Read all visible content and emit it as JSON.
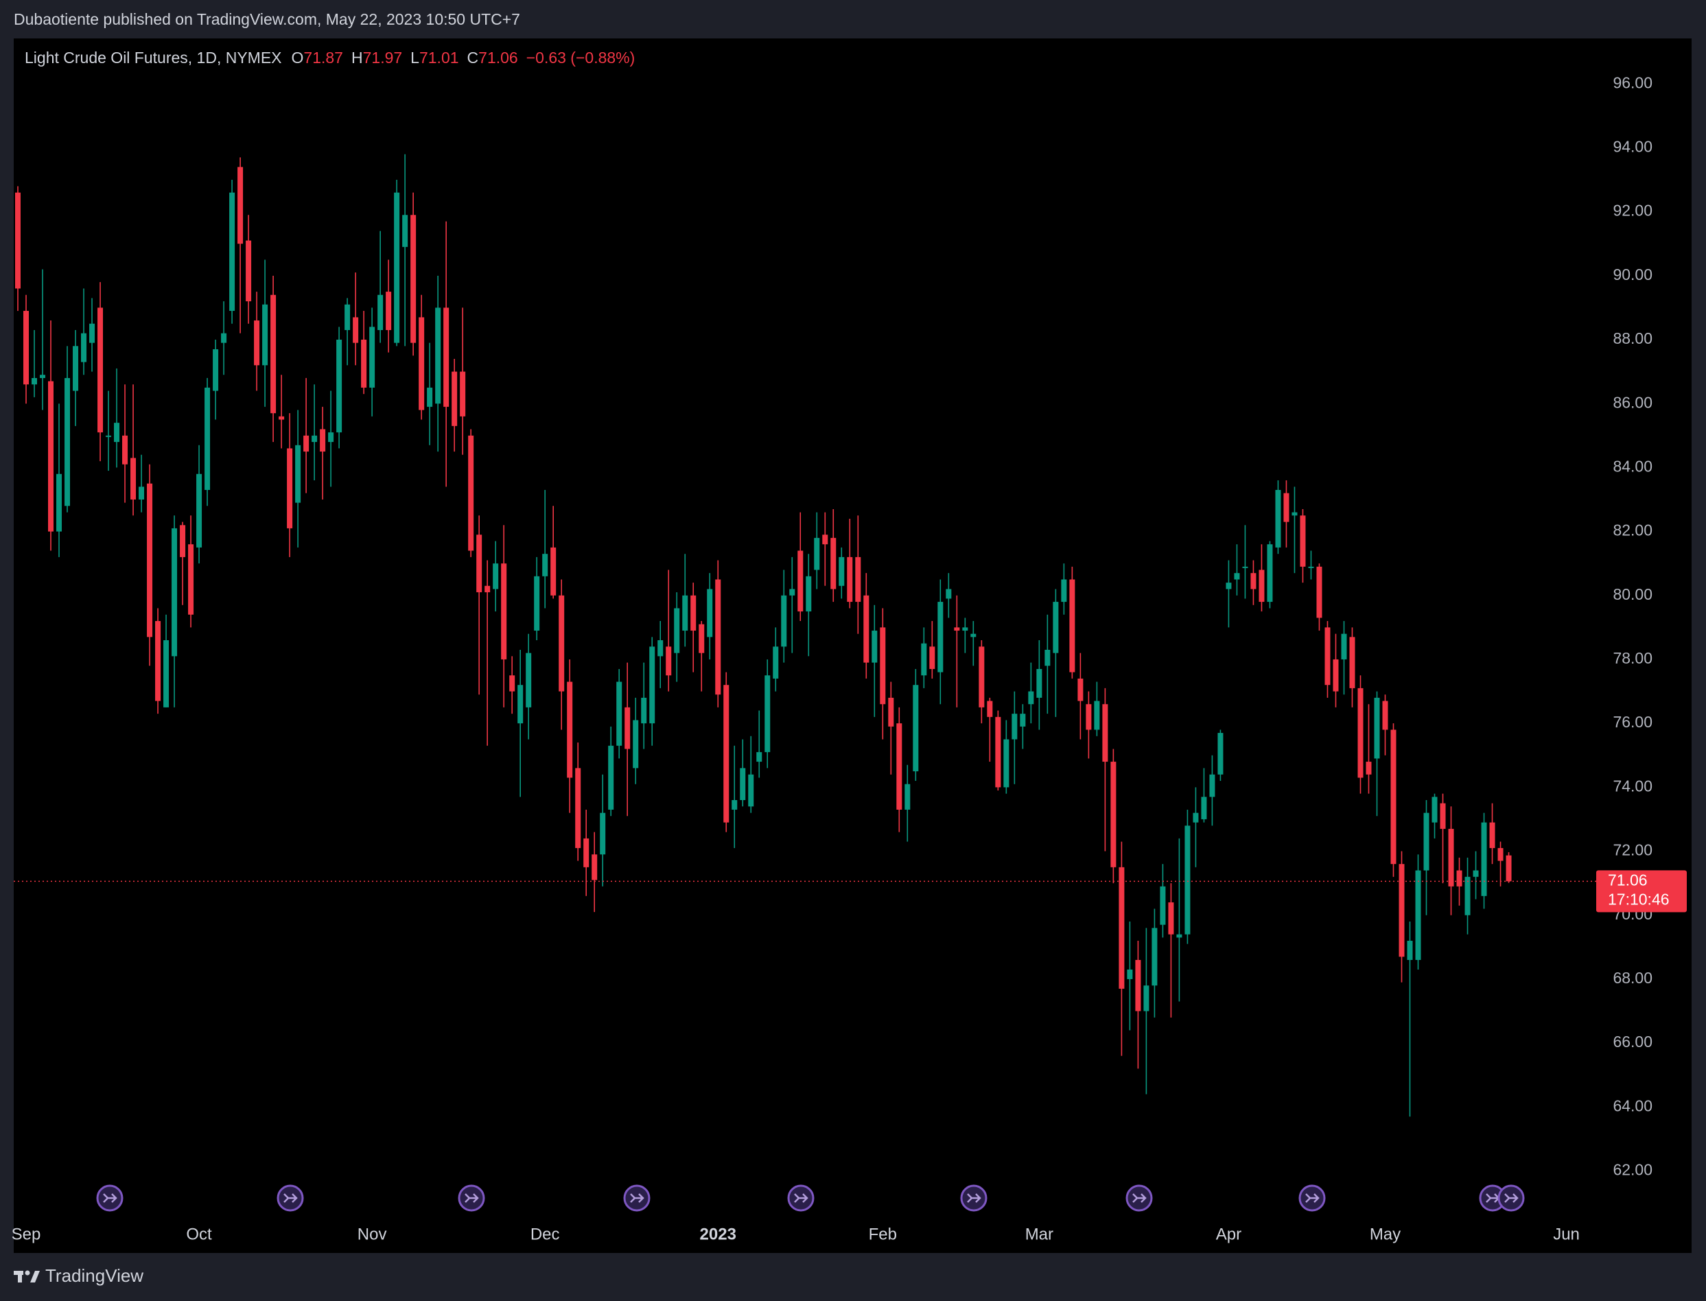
{
  "header": {
    "text": "Dubaotiente published on TradingView.com, May 22, 2023 10:50 UTC+7"
  },
  "chart_data": {
    "type": "candlestick",
    "title": "Light Crude Oil Futures, 1D, NYMEX",
    "ohlc_labels": [
      "O",
      "H",
      "L",
      "C"
    ],
    "change": "−0.63 (−0.88%)",
    "countdown": "17:10:46",
    "up_color": "#089981",
    "down_color": "#f23645",
    "last_price_line": true,
    "ohlc": [
      [
        92.6,
        92.8,
        88.9,
        89.6
      ],
      [
        88.9,
        89.4,
        86.0,
        86.6
      ],
      [
        86.6,
        88.3,
        86.2,
        86.8
      ],
      [
        86.8,
        90.2,
        85.8,
        86.9
      ],
      [
        86.7,
        88.6,
        81.4,
        82.0
      ],
      [
        82.0,
        86.0,
        81.2,
        83.8
      ],
      [
        82.8,
        87.8,
        82.6,
        86.8
      ],
      [
        86.4,
        88.3,
        85.3,
        87.8
      ],
      [
        87.3,
        89.6,
        86.9,
        88.2
      ],
      [
        87.9,
        89.3,
        87.0,
        88.5
      ],
      [
        89.0,
        89.8,
        84.2,
        85.1
      ],
      [
        85.0,
        86.4,
        83.9,
        85.0
      ],
      [
        84.8,
        87.1,
        84.0,
        85.4
      ],
      [
        85.0,
        86.6,
        82.9,
        84.1
      ],
      [
        84.3,
        86.6,
        82.5,
        83.0
      ],
      [
        83.0,
        84.4,
        82.6,
        83.4
      ],
      [
        83.5,
        84.1,
        77.8,
        78.7
      ],
      [
        79.2,
        79.6,
        76.3,
        76.7
      ],
      [
        76.5,
        79.4,
        76.5,
        78.6
      ],
      [
        78.1,
        82.5,
        76.5,
        82.1
      ],
      [
        82.2,
        82.3,
        79.7,
        81.2
      ],
      [
        81.6,
        82.5,
        79.0,
        79.4
      ],
      [
        81.5,
        84.7,
        81.0,
        83.8
      ],
      [
        83.3,
        86.8,
        82.8,
        86.5
      ],
      [
        86.4,
        88.0,
        85.5,
        87.7
      ],
      [
        87.9,
        89.2,
        86.9,
        88.2
      ],
      [
        88.9,
        93.0,
        88.5,
        92.6
      ],
      [
        93.4,
        93.7,
        88.2,
        91.0
      ],
      [
        91.1,
        91.9,
        88.5,
        89.2
      ],
      [
        88.6,
        89.5,
        86.4,
        87.2
      ],
      [
        87.2,
        90.5,
        85.9,
        89.1
      ],
      [
        89.4,
        90.0,
        84.8,
        85.7
      ],
      [
        85.6,
        86.9,
        84.6,
        85.5
      ],
      [
        84.6,
        85.7,
        81.2,
        82.1
      ],
      [
        82.9,
        85.8,
        81.5,
        84.7
      ],
      [
        85.0,
        86.8,
        83.2,
        84.5
      ],
      [
        84.8,
        86.6,
        83.6,
        85.0
      ],
      [
        85.2,
        85.9,
        83.0,
        84.5
      ],
      [
        84.8,
        86.4,
        83.4,
        85.1
      ],
      [
        85.1,
        88.4,
        84.6,
        88.0
      ],
      [
        88.3,
        89.3,
        87.2,
        89.1
      ],
      [
        88.7,
        90.1,
        87.2,
        87.9
      ],
      [
        88.0,
        88.9,
        86.3,
        86.5
      ],
      [
        86.5,
        89.0,
        85.6,
        88.4
      ],
      [
        88.3,
        91.4,
        87.9,
        89.4
      ],
      [
        89.5,
        90.5,
        87.6,
        88.3
      ],
      [
        87.9,
        93.0,
        87.8,
        92.6
      ],
      [
        90.9,
        93.8,
        87.8,
        91.9
      ],
      [
        91.9,
        92.6,
        87.5,
        87.9
      ],
      [
        88.7,
        89.4,
        85.5,
        85.8
      ],
      [
        85.9,
        87.9,
        84.7,
        86.5
      ],
      [
        86.0,
        90.0,
        84.5,
        89.0
      ],
      [
        89.0,
        91.7,
        83.4,
        85.9
      ],
      [
        87.0,
        87.4,
        84.5,
        85.3
      ],
      [
        87.0,
        89.0,
        84.4,
        85.6
      ],
      [
        85.0,
        85.2,
        81.2,
        81.4
      ],
      [
        81.9,
        82.5,
        76.9,
        80.1
      ],
      [
        80.3,
        81.1,
        75.3,
        80.1
      ],
      [
        80.2,
        81.7,
        79.5,
        81.0
      ],
      [
        81.0,
        82.2,
        76.5,
        78.0
      ],
      [
        77.5,
        78.1,
        76.3,
        77.0
      ],
      [
        76.0,
        78.3,
        73.7,
        77.2
      ],
      [
        76.5,
        78.8,
        75.5,
        78.2
      ],
      [
        78.9,
        81.2,
        78.6,
        80.6
      ],
      [
        80.6,
        83.3,
        79.6,
        81.3
      ],
      [
        81.5,
        82.8,
        79.9,
        80.0
      ],
      [
        80.0,
        80.5,
        75.8,
        77.0
      ],
      [
        77.3,
        78.0,
        73.2,
        74.3
      ],
      [
        74.6,
        75.4,
        71.7,
        72.1
      ],
      [
        72.4,
        73.3,
        70.6,
        71.5
      ],
      [
        71.9,
        72.6,
        70.1,
        71.1
      ],
      [
        71.9,
        74.4,
        70.9,
        73.2
      ],
      [
        73.3,
        75.9,
        73.1,
        75.3
      ],
      [
        75.3,
        77.7,
        74.9,
        77.3
      ],
      [
        76.5,
        77.9,
        73.1,
        75.2
      ],
      [
        74.6,
        76.8,
        74.1,
        76.1
      ],
      [
        76.0,
        77.9,
        75.2,
        76.8
      ],
      [
        76.0,
        78.7,
        75.3,
        78.4
      ],
      [
        78.1,
        79.2,
        77.1,
        78.6
      ],
      [
        78.4,
        80.8,
        77.0,
        77.5
      ],
      [
        78.2,
        80.1,
        77.3,
        79.6
      ],
      [
        78.9,
        81.3,
        78.4,
        80.0
      ],
      [
        80.0,
        80.4,
        77.6,
        78.9
      ],
      [
        79.1,
        79.2,
        77.0,
        78.2
      ],
      [
        78.7,
        80.7,
        78.0,
        80.2
      ],
      [
        80.5,
        81.1,
        76.5,
        76.9
      ],
      [
        77.2,
        77.6,
        72.6,
        72.9
      ],
      [
        73.3,
        75.3,
        72.1,
        73.6
      ],
      [
        73.6,
        75.5,
        73.4,
        74.6
      ],
      [
        73.4,
        75.6,
        73.2,
        74.4
      ],
      [
        74.8,
        76.4,
        74.3,
        75.1
      ],
      [
        75.1,
        78.0,
        74.6,
        77.5
      ],
      [
        77.4,
        79.0,
        77.0,
        78.4
      ],
      [
        78.4,
        80.8,
        77.9,
        80.0
      ],
      [
        80.0,
        81.2,
        78.2,
        80.2
      ],
      [
        81.4,
        82.6,
        79.2,
        79.5
      ],
      [
        79.5,
        81.3,
        78.1,
        80.6
      ],
      [
        80.8,
        82.6,
        80.2,
        81.8
      ],
      [
        81.9,
        82.6,
        80.3,
        81.6
      ],
      [
        81.8,
        82.7,
        79.8,
        80.2
      ],
      [
        80.3,
        81.5,
        79.9,
        81.2
      ],
      [
        81.2,
        82.4,
        79.6,
        79.8
      ],
      [
        81.2,
        82.5,
        78.8,
        79.8
      ],
      [
        80.0,
        80.7,
        77.4,
        77.9
      ],
      [
        77.9,
        79.7,
        76.2,
        78.9
      ],
      [
        79.0,
        79.6,
        75.5,
        76.6
      ],
      [
        76.8,
        77.3,
        74.4,
        75.9
      ],
      [
        76.0,
        76.5,
        72.6,
        73.3
      ],
      [
        73.3,
        74.7,
        72.3,
        74.1
      ],
      [
        74.5,
        77.7,
        74.2,
        77.2
      ],
      [
        77.5,
        79.0,
        77.1,
        78.5
      ],
      [
        78.4,
        79.2,
        77.4,
        77.7
      ],
      [
        77.6,
        80.5,
        76.6,
        79.8
      ],
      [
        79.9,
        80.7,
        79.3,
        80.2
      ],
      [
        79.0,
        80.0,
        76.5,
        78.9
      ],
      [
        78.9,
        79.3,
        78.2,
        79.0
      ],
      [
        78.7,
        79.2,
        77.8,
        78.8
      ],
      [
        78.4,
        78.6,
        76.0,
        76.5
      ],
      [
        76.7,
        76.8,
        74.8,
        76.2
      ],
      [
        76.2,
        76.4,
        73.9,
        74.0
      ],
      [
        74.0,
        76.1,
        73.8,
        75.5
      ],
      [
        75.5,
        77.0,
        74.1,
        76.3
      ],
      [
        75.9,
        76.6,
        75.2,
        76.3
      ],
      [
        76.6,
        77.9,
        76.0,
        77.0
      ],
      [
        76.8,
        78.6,
        75.8,
        77.7
      ],
      [
        77.8,
        79.4,
        76.3,
        78.3
      ],
      [
        78.2,
        80.2,
        76.2,
        79.8
      ],
      [
        79.8,
        81.0,
        79.4,
        80.5
      ],
      [
        80.5,
        80.9,
        77.4,
        77.6
      ],
      [
        77.4,
        78.2,
        75.5,
        76.7
      ],
      [
        76.6,
        77.0,
        74.9,
        75.8
      ],
      [
        75.8,
        77.3,
        75.6,
        76.7
      ],
      [
        76.6,
        77.1,
        72.0,
        74.8
      ],
      [
        74.8,
        75.2,
        71.0,
        71.5
      ],
      [
        71.5,
        72.3,
        65.6,
        67.7
      ],
      [
        68.0,
        69.8,
        66.4,
        68.3
      ],
      [
        68.6,
        69.2,
        65.2,
        67.0
      ],
      [
        67.0,
        69.6,
        64.4,
        67.8
      ],
      [
        67.8,
        70.2,
        66.8,
        69.6
      ],
      [
        69.7,
        71.6,
        69.3,
        70.9
      ],
      [
        70.4,
        71.0,
        66.8,
        69.4
      ],
      [
        69.3,
        72.4,
        67.3,
        69.4
      ],
      [
        69.4,
        73.3,
        69.1,
        72.8
      ],
      [
        72.9,
        74.0,
        71.5,
        73.2
      ],
      [
        73.0,
        74.6,
        72.9,
        73.7
      ],
      [
        73.7,
        75.0,
        72.8,
        74.4
      ],
      [
        74.4,
        75.8,
        74.2,
        75.7
      ],
      [
        80.2,
        81.1,
        79.0,
        80.4
      ],
      [
        80.5,
        81.6,
        80.0,
        80.7
      ],
      [
        80.9,
        82.2,
        79.9,
        80.9
      ],
      [
        80.7,
        81.1,
        79.7,
        80.2
      ],
      [
        80.8,
        81.6,
        79.5,
        79.8
      ],
      [
        79.8,
        81.7,
        79.6,
        81.6
      ],
      [
        81.5,
        83.6,
        81.3,
        83.3
      ],
      [
        83.2,
        83.6,
        81.5,
        82.3
      ],
      [
        82.5,
        83.4,
        80.7,
        82.6
      ],
      [
        82.5,
        82.7,
        80.4,
        80.9
      ],
      [
        80.9,
        81.4,
        80.5,
        80.9
      ],
      [
        80.9,
        81.0,
        78.9,
        79.3
      ],
      [
        79.0,
        79.2,
        76.8,
        77.2
      ],
      [
        78.0,
        78.8,
        76.5,
        77.0
      ],
      [
        78.0,
        79.2,
        76.9,
        78.8
      ],
      [
        78.7,
        79.0,
        76.5,
        77.1
      ],
      [
        77.1,
        77.5,
        73.8,
        74.3
      ],
      [
        74.8,
        76.6,
        73.8,
        74.4
      ],
      [
        74.9,
        77.0,
        73.1,
        76.8
      ],
      [
        76.7,
        76.9,
        75.0,
        75.8
      ],
      [
        75.8,
        76.0,
        71.2,
        71.6
      ],
      [
        71.6,
        72.0,
        67.9,
        68.7
      ],
      [
        68.6,
        69.8,
        63.7,
        69.2
      ],
      [
        68.6,
        71.9,
        68.3,
        71.4
      ],
      [
        71.4,
        73.6,
        70.0,
        73.2
      ],
      [
        72.9,
        73.8,
        72.4,
        73.7
      ],
      [
        73.5,
        73.8,
        71.0,
        72.7
      ],
      [
        72.7,
        73.4,
        70.0,
        70.9
      ],
      [
        71.4,
        71.8,
        70.3,
        70.9
      ],
      [
        70.0,
        71.8,
        69.4,
        71.2
      ],
      [
        71.2,
        72.0,
        70.5,
        71.4
      ],
      [
        70.6,
        73.2,
        70.2,
        72.9
      ],
      [
        72.9,
        73.5,
        71.6,
        72.1
      ],
      [
        72.1,
        72.3,
        70.9,
        71.7
      ],
      [
        71.87,
        71.97,
        71.01,
        71.06
      ]
    ],
    "xlim": [
      -0.5,
      203.2
    ],
    "xticks": [
      {
        "value": 1,
        "label": "Sep"
      },
      {
        "value": 22,
        "label": "Oct"
      },
      {
        "value": 43,
        "label": "Nov"
      },
      {
        "value": 64,
        "label": "Dec"
      },
      {
        "value": 85,
        "label": "2023"
      },
      {
        "value": 105,
        "label": "Feb"
      },
      {
        "value": 124,
        "label": "Mar"
      },
      {
        "value": 147,
        "label": "Apr"
      },
      {
        "value": 166,
        "label": "May"
      },
      {
        "value": 188,
        "label": "Jun"
      }
    ],
    "ylim": [
      59.5,
      97.4
    ],
    "yticks": [
      {
        "value": 62,
        "label": "62.00"
      },
      {
        "value": 64,
        "label": "64.00"
      },
      {
        "value": 66,
        "label": "66.00"
      },
      {
        "value": 68,
        "label": "68.00"
      },
      {
        "value": 70,
        "label": "70.00"
      },
      {
        "value": 72,
        "label": "72.00"
      },
      {
        "value": 74,
        "label": "74.00"
      },
      {
        "value": 76,
        "label": "76.00"
      },
      {
        "value": 78,
        "label": "78.00"
      },
      {
        "value": 80,
        "label": "80.00"
      },
      {
        "value": 82,
        "label": "82.00"
      },
      {
        "value": 84,
        "label": "84.00"
      },
      {
        "value": 86,
        "label": "86.00"
      },
      {
        "value": 88,
        "label": "88.00"
      },
      {
        "value": 90,
        "label": "90.00"
      },
      {
        "value": 92,
        "label": "92.00"
      },
      {
        "value": 94,
        "label": "94.00"
      },
      {
        "value": 96,
        "label": "96.00"
      }
    ]
  },
  "footer": {
    "brand": "TradingView"
  }
}
